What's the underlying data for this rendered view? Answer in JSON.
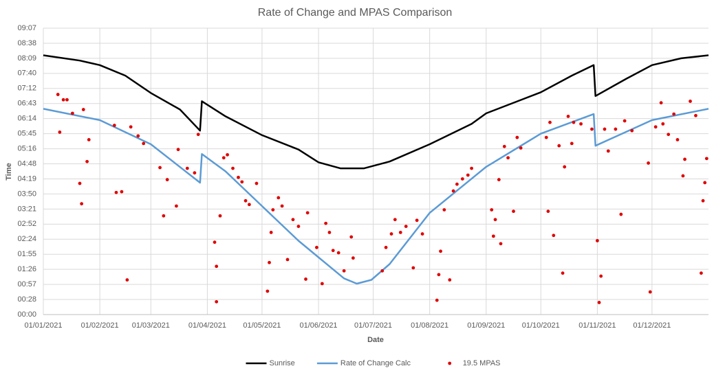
{
  "chart_data": {
    "type": "line",
    "title": "Rate of Change and MPAS Comparison",
    "x_label": "Date",
    "y_label": "Time",
    "xlim": [
      0,
      365
    ],
    "ylim": [
      0,
      0.38
    ],
    "grid": true,
    "legend": "bottom",
    "xticks": [
      {
        "value": 0,
        "label": "01/01/2021"
      },
      {
        "value": 31,
        "label": "01/02/2021"
      },
      {
        "value": 59,
        "label": "01/03/2021"
      },
      {
        "value": 90,
        "label": "01/04/2021"
      },
      {
        "value": 120,
        "label": "01/05/2021"
      },
      {
        "value": 151,
        "label": "01/06/2021"
      },
      {
        "value": 181,
        "label": "01/07/2021"
      },
      {
        "value": 212,
        "label": "01/08/2021"
      },
      {
        "value": 243,
        "label": "01/09/2021"
      },
      {
        "value": 273,
        "label": "01/10/2021"
      },
      {
        "value": 304,
        "label": "01/11/2021"
      },
      {
        "value": 334,
        "label": "01/12/2021"
      }
    ],
    "yticks": [
      {
        "value": 0,
        "label": "00:00"
      },
      {
        "value": 0.02,
        "label": "00:28"
      },
      {
        "value": 0.04,
        "label": "00:57"
      },
      {
        "value": 0.06,
        "label": "01:26"
      },
      {
        "value": 0.08,
        "label": "01:55"
      },
      {
        "value": 0.1,
        "label": "02:24"
      },
      {
        "value": 0.12,
        "label": "02:52"
      },
      {
        "value": 0.14,
        "label": "03:21"
      },
      {
        "value": 0.16,
        "label": "03:50"
      },
      {
        "value": 0.18,
        "label": "04:19"
      },
      {
        "value": 0.2,
        "label": "04:48"
      },
      {
        "value": 0.22,
        "label": "05:16"
      },
      {
        "value": 0.24,
        "label": "05:45"
      },
      {
        "value": 0.26,
        "label": "06:14"
      },
      {
        "value": 0.28,
        "label": "06:43"
      },
      {
        "value": 0.3,
        "label": "07:12"
      },
      {
        "value": 0.32,
        "label": "07:40"
      },
      {
        "value": 0.34,
        "label": "08:09"
      },
      {
        "value": 0.36,
        "label": "08:38"
      },
      {
        "value": 0.38,
        "label": "09:07"
      }
    ],
    "series": [
      {
        "name": "Sunrise",
        "type": "line",
        "color": "#000000",
        "x": [
          0,
          20,
          31,
          45,
          59,
          75,
          86,
          87,
          100,
          120,
          140,
          151,
          163,
          176,
          190,
          212,
          235,
          243,
          273,
          290,
          302,
          303,
          320,
          334,
          350,
          365
        ],
        "values": [
          0.344,
          0.337,
          0.331,
          0.317,
          0.294,
          0.272,
          0.244,
          0.283,
          0.263,
          0.238,
          0.219,
          0.202,
          0.194,
          0.194,
          0.203,
          0.226,
          0.253,
          0.267,
          0.295,
          0.317,
          0.331,
          0.29,
          0.313,
          0.331,
          0.34,
          0.344
        ]
      },
      {
        "name": "Rate of Change Calc",
        "type": "line",
        "color": "#5b9bd5",
        "x": [
          0,
          31,
          59,
          86,
          87,
          100,
          120,
          140,
          151,
          165,
          172,
          180,
          190,
          212,
          243,
          273,
          302,
          303,
          334,
          365
        ],
        "values": [
          0.273,
          0.258,
          0.226,
          0.175,
          0.213,
          0.19,
          0.144,
          0.098,
          0.076,
          0.048,
          0.041,
          0.046,
          0.067,
          0.135,
          0.196,
          0.24,
          0.266,
          0.224,
          0.258,
          0.273
        ]
      },
      {
        "name": "19.5 MPAS",
        "type": "scatter",
        "color": "#e00000",
        "x": [
          8,
          9,
          11,
          13,
          16,
          20,
          21,
          22,
          24,
          25,
          39,
          40,
          43,
          46,
          48,
          52,
          55,
          64,
          66,
          68,
          73,
          74,
          79,
          83,
          85,
          94,
          95,
          95,
          97,
          99,
          101,
          104,
          107,
          109,
          111,
          113,
          117,
          123,
          124,
          125,
          126,
          129,
          131,
          134,
          137,
          140,
          144,
          145,
          150,
          153,
          155,
          157,
          159,
          162,
          165,
          169,
          170,
          186,
          188,
          191,
          193,
          196,
          199,
          203,
          205,
          208,
          216,
          217,
          218,
          220,
          223,
          225,
          227,
          230,
          233,
          235,
          246,
          247,
          248,
          250,
          251,
          253,
          255,
          258,
          260,
          262,
          276,
          277,
          278,
          280,
          283,
          285,
          286,
          288,
          290,
          291,
          295,
          301,
          304,
          305,
          306,
          308,
          310,
          314,
          317,
          319,
          323,
          332,
          333,
          336,
          339,
          340,
          343,
          346,
          348,
          351,
          352,
          355,
          358,
          361,
          362,
          363,
          364
        ],
        "values": [
          0.292,
          0.242,
          0.285,
          0.285,
          0.267,
          0.174,
          0.147,
          0.272,
          0.203,
          0.232,
          0.251,
          0.162,
          0.163,
          0.046,
          0.249,
          0.237,
          0.227,
          0.195,
          0.131,
          0.179,
          0.144,
          0.219,
          0.194,
          0.188,
          0.239,
          0.096,
          0.064,
          0.017,
          0.131,
          0.208,
          0.212,
          0.194,
          0.182,
          0.176,
          0.151,
          0.146,
          0.174,
          0.031,
          0.069,
          0.109,
          0.139,
          0.155,
          0.144,
          0.073,
          0.126,
          0.117,
          0.047,
          0.135,
          0.089,
          0.041,
          0.121,
          0.109,
          0.085,
          0.082,
          0.058,
          0.103,
          0.075,
          0.058,
          0.089,
          0.107,
          0.126,
          0.109,
          0.117,
          0.062,
          0.125,
          0.107,
          0.019,
          0.053,
          0.084,
          0.139,
          0.046,
          0.164,
          0.173,
          0.18,
          0.185,
          0.194,
          0.139,
          0.104,
          0.126,
          0.179,
          0.094,
          0.223,
          0.208,
          0.137,
          0.235,
          0.221,
          0.235,
          0.137,
          0.255,
          0.105,
          0.224,
          0.055,
          0.196,
          0.263,
          0.227,
          0.255,
          0.253,
          0.246,
          0.098,
          0.016,
          0.051,
          0.246,
          0.217,
          0.246,
          0.133,
          0.257,
          0.244,
          0.201,
          0.03,
          0.249,
          0.281,
          0.253,
          0.239,
          0.266,
          0.232,
          0.184,
          0.206,
          0.283,
          0.264,
          0.055,
          0.151,
          0.175,
          0.207
        ]
      }
    ]
  }
}
